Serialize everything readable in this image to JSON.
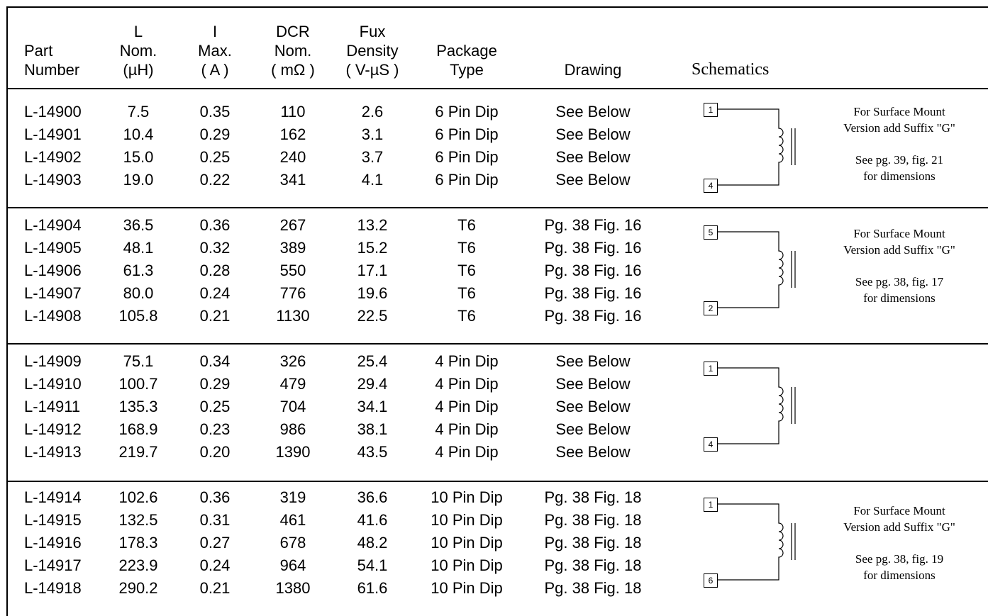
{
  "headers": {
    "part": [
      "Part",
      "Number"
    ],
    "l": [
      "L",
      "Nom.",
      "(µH)"
    ],
    "i": [
      "I",
      "Max.",
      "( A )"
    ],
    "dcr": [
      "DCR",
      "Nom.",
      "( mΩ )"
    ],
    "flux": [
      "Fux",
      "Density",
      "( V-µS )"
    ],
    "pkg": [
      "Package",
      "Type"
    ],
    "drawing": [
      "Drawing"
    ],
    "schematics": [
      "Schematics"
    ]
  },
  "groups": [
    {
      "rows": [
        {
          "part": "L-14900",
          "l": "7.5",
          "i": "0.35",
          "dcr": "110",
          "flux": "2.6",
          "pkg": "6 Pin Dip",
          "drawing": "See Below"
        },
        {
          "part": "L-14901",
          "l": "10.4",
          "i": "0.29",
          "dcr": "162",
          "flux": "3.1",
          "pkg": "6 Pin Dip",
          "drawing": "See Below"
        },
        {
          "part": "L-14902",
          "l": "15.0",
          "i": "0.25",
          "dcr": "240",
          "flux": "3.7",
          "pkg": "6 Pin Dip",
          "drawing": "See Below"
        },
        {
          "part": "L-14903",
          "l": "19.0",
          "i": "0.22",
          "dcr": "341",
          "flux": "4.1",
          "pkg": "6 Pin Dip",
          "drawing": "See Below"
        }
      ],
      "pins": [
        "1",
        "4"
      ],
      "note": {
        "line1": "For Surface Mount",
        "line2": "Version add Suffix \"G\"",
        "line3": "See pg. 39, fig. 21",
        "line4": "for dimensions"
      }
    },
    {
      "rows": [
        {
          "part": "L-14904",
          "l": "36.5",
          "i": "0.36",
          "dcr": "267",
          "flux": "13.2",
          "pkg": "T6",
          "drawing": "Pg. 38 Fig. 16"
        },
        {
          "part": "L-14905",
          "l": "48.1",
          "i": "0.32",
          "dcr": "389",
          "flux": "15.2",
          "pkg": "T6",
          "drawing": "Pg. 38 Fig. 16"
        },
        {
          "part": "L-14906",
          "l": "61.3",
          "i": "0.28",
          "dcr": "550",
          "flux": "17.1",
          "pkg": "T6",
          "drawing": "Pg. 38 Fig. 16"
        },
        {
          "part": "L-14907",
          "l": "80.0",
          "i": "0.24",
          "dcr": "776",
          "flux": "19.6",
          "pkg": "T6",
          "drawing": "Pg. 38 Fig. 16"
        },
        {
          "part": "L-14908",
          "l": "105.8",
          "i": "0.21",
          "dcr": "1130",
          "flux": "22.5",
          "pkg": "T6",
          "drawing": "Pg. 38 Fig. 16"
        }
      ],
      "pins": [
        "5",
        "2"
      ],
      "note": {
        "line1": "For Surface Mount",
        "line2": "Version add Suffix \"G\"",
        "line3": "See pg. 38, fig. 17",
        "line4": "for dimensions"
      }
    },
    {
      "rows": [
        {
          "part": "L-14909",
          "l": "75.1",
          "i": "0.34",
          "dcr": "326",
          "flux": "25.4",
          "pkg": "4 Pin Dip",
          "drawing": "See Below"
        },
        {
          "part": "L-14910",
          "l": "100.7",
          "i": "0.29",
          "dcr": "479",
          "flux": "29.4",
          "pkg": "4 Pin Dip",
          "drawing": "See Below"
        },
        {
          "part": "L-14911",
          "l": "135.3",
          "i": "0.25",
          "dcr": "704",
          "flux": "34.1",
          "pkg": "4 Pin Dip",
          "drawing": "See Below"
        },
        {
          "part": "L-14912",
          "l": "168.9",
          "i": "0.23",
          "dcr": "986",
          "flux": "38.1",
          "pkg": "4 Pin Dip",
          "drawing": "See Below"
        },
        {
          "part": "L-14913",
          "l": "219.7",
          "i": "0.20",
          "dcr": "1390",
          "flux": "43.5",
          "pkg": "4 Pin Dip",
          "drawing": "See Below"
        }
      ],
      "pins": [
        "1",
        "4"
      ]
    },
    {
      "rows": [
        {
          "part": "L-14914",
          "l": "102.6",
          "i": "0.36",
          "dcr": "319",
          "flux": "36.6",
          "pkg": "10 Pin Dip",
          "drawing": "Pg. 38 Fig. 18"
        },
        {
          "part": "L-14915",
          "l": "132.5",
          "i": "0.31",
          "dcr": "461",
          "flux": "41.6",
          "pkg": "10 Pin Dip",
          "drawing": "Pg. 38 Fig. 18"
        },
        {
          "part": "L-14916",
          "l": "178.3",
          "i": "0.27",
          "dcr": "678",
          "flux": "48.2",
          "pkg": "10 Pin Dip",
          "drawing": "Pg. 38 Fig. 18"
        },
        {
          "part": "L-14917",
          "l": "223.9",
          "i": "0.24",
          "dcr": "964",
          "flux": "54.1",
          "pkg": "10 Pin Dip",
          "drawing": "Pg. 38 Fig. 18"
        },
        {
          "part": "L-14918",
          "l": "290.2",
          "i": "0.21",
          "dcr": "1380",
          "flux": "61.6",
          "pkg": "10 Pin Dip",
          "drawing": "Pg. 38 Fig. 18"
        }
      ],
      "pins": [
        "1",
        "6"
      ],
      "note": {
        "line1": "For Surface Mount",
        "line2": "Version add Suffix \"G\"",
        "line3": "See pg. 38, fig. 19",
        "line4": "for dimensions"
      }
    }
  ]
}
